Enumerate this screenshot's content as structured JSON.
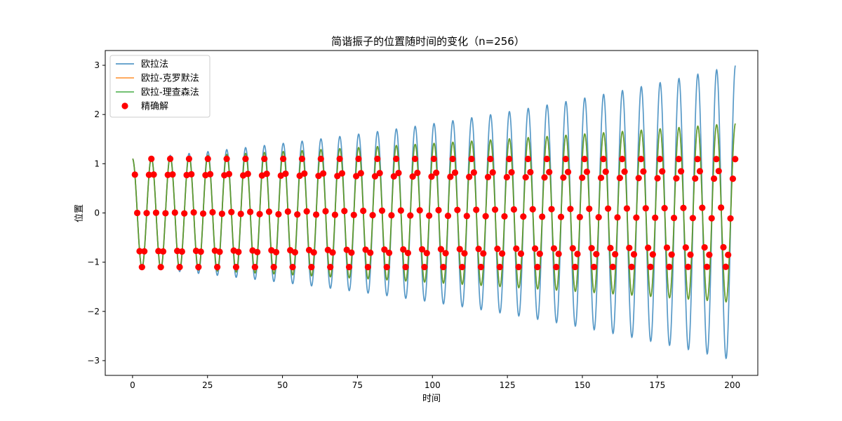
{
  "chart_data": {
    "type": "line",
    "title": "简谐振子的位置随时间的变化（n=256）",
    "xlabel": "时间",
    "ylabel": "位置",
    "xlim": [
      -9.1,
      208.5
    ],
    "ylim": [
      -3.3,
      3.3
    ],
    "x_ticks": [
      0,
      25,
      50,
      75,
      100,
      125,
      150,
      175,
      200
    ],
    "y_ticks": [
      -3,
      -2,
      -1,
      0,
      1,
      2,
      3
    ],
    "grid": false,
    "legend": "top-left",
    "series": [
      {
        "name": "欧拉法",
        "kind": "line",
        "color": "#1f77b4",
        "model": {
          "x_start": 0,
          "x_end": 201,
          "initial": 1.1,
          "omega": 1.0,
          "end_amplitude": 3.0
        }
      },
      {
        "name": "欧拉-克罗默法",
        "kind": "line",
        "color": "#ff7f0e",
        "model": {
          "x_start": 0,
          "x_end": 201,
          "initial": 1.1,
          "omega": 1.0,
          "end_amplitude": 1.82
        }
      },
      {
        "name": "欧拉-理查森法",
        "kind": "line",
        "color": "#2ca02c",
        "model": {
          "x_start": 0,
          "x_end": 201,
          "initial": 1.1,
          "omega": 1.0,
          "end_amplitude": 1.82
        }
      },
      {
        "name": "精确解",
        "kind": "scatter",
        "color": "#ff0000",
        "model": {
          "x_start": 0.785,
          "x_end": 201,
          "step": 0.785,
          "amplitude": 1.1,
          "omega": 1.0
        }
      }
    ]
  }
}
